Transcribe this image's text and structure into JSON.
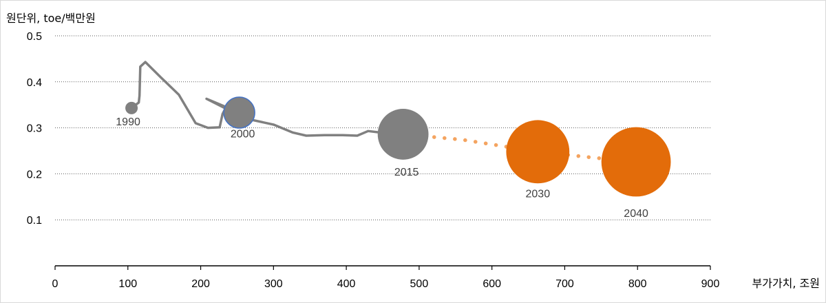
{
  "chart_data": {
    "type": "scatter",
    "ylabel": "원단위, toe/백만원",
    "xlabel": "부가가치, 조원",
    "xlim": [
      0,
      900
    ],
    "ylim": [
      0,
      0.5
    ],
    "x_ticks": [
      0,
      100,
      200,
      300,
      400,
      500,
      600,
      700,
      800,
      900
    ],
    "y_ticks": [
      0.1,
      0.2,
      0.3,
      0.4,
      0.5
    ],
    "y_tick_labels": [
      "0.1",
      "0.2",
      "0.3",
      "0.4",
      "0.5"
    ],
    "grid": "horizontal dotted",
    "historical_path": [
      [
        105,
        0.343
      ],
      [
        115,
        0.355
      ],
      [
        116,
        0.37
      ],
      [
        117,
        0.433
      ],
      [
        124,
        0.443
      ],
      [
        145,
        0.41
      ],
      [
        170,
        0.372
      ],
      [
        193,
        0.31
      ],
      [
        210,
        0.3
      ],
      [
        226,
        0.301
      ],
      [
        230,
        0.33
      ],
      [
        235,
        0.345
      ],
      [
        208,
        0.363
      ],
      [
        243,
        0.335
      ],
      [
        262,
        0.32
      ],
      [
        300,
        0.307
      ],
      [
        326,
        0.29
      ],
      [
        345,
        0.283
      ],
      [
        370,
        0.284
      ],
      [
        395,
        0.284
      ],
      [
        415,
        0.283
      ],
      [
        430,
        0.293
      ],
      [
        450,
        0.289
      ],
      [
        478,
        0.286
      ]
    ],
    "projection_path": [
      [
        478,
        0.286
      ],
      [
        560,
        0.274
      ],
      [
        663,
        0.248
      ],
      [
        740,
        0.235
      ],
      [
        798,
        0.226
      ]
    ],
    "bubbles": [
      {
        "label": "1990",
        "x": 105,
        "y": 0.343,
        "size": 1.0,
        "color": "#808080",
        "stroke": "none"
      },
      {
        "label": "2000",
        "x": 253,
        "y": 0.333,
        "size": 2.5,
        "color": "#808080",
        "stroke": "#4472c4"
      },
      {
        "label": "2015",
        "x": 478,
        "y": 0.286,
        "size": 4.1,
        "color": "#808080",
        "stroke": "none"
      },
      {
        "label": "2030",
        "x": 663,
        "y": 0.248,
        "size": 5.1,
        "color": "#e36c0a",
        "stroke": "none"
      },
      {
        "label": "2040",
        "x": 798,
        "y": 0.226,
        "size": 5.6,
        "color": "#e36c0a",
        "stroke": "none"
      }
    ],
    "colors": {
      "history": "#808080",
      "projection_dots": "#f4a460",
      "projection": "#e36c0a",
      "grid": "#595959"
    }
  }
}
